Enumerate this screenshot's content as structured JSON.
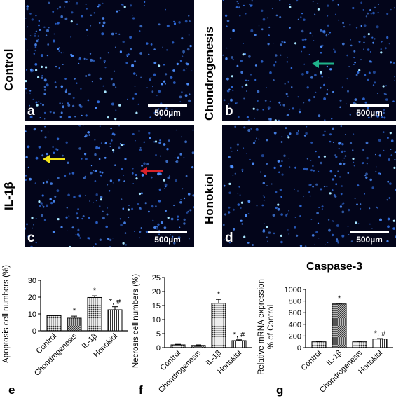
{
  "panels": [
    {
      "letter": "a",
      "label": "Control",
      "scale": "500µm"
    },
    {
      "letter": "b",
      "label": "Chondrogenesis",
      "scale": "500µm"
    },
    {
      "letter": "c",
      "label": "IL-1β",
      "scale": "500µm"
    },
    {
      "letter": "d",
      "label": "Honokiol",
      "scale": "500µm"
    }
  ],
  "arrow_colors": {
    "green": "#1fb38a",
    "yellow": "#f2e418",
    "red": "#d8222a"
  },
  "chart_data": [
    {
      "type": "bar",
      "panel": "e",
      "title": "",
      "ylabel": "Apoptosis cell numbers (%)",
      "categories": [
        "Control",
        "Chondrogenesis",
        "IL-1β",
        "Honokiol"
      ],
      "values": [
        9,
        7.5,
        19.8,
        12.5
      ],
      "errors": [
        0.3,
        1.2,
        1.0,
        1.8
      ],
      "annotations": [
        "",
        "*",
        "*",
        "*, #"
      ],
      "patterns": [
        "dots",
        "grid",
        "dots",
        "vlines"
      ],
      "ylim": [
        0,
        30
      ],
      "yticks": [
        0,
        10,
        20,
        30
      ]
    },
    {
      "type": "bar",
      "panel": "f",
      "title": "",
      "ylabel": "Necrosis cell numbers (%)",
      "categories": [
        "Control",
        "Chondrogenesis",
        "IL-1β",
        "Honokiol"
      ],
      "values": [
        1.0,
        0.8,
        15.8,
        2.5
      ],
      "errors": [
        0.2,
        0.2,
        1.4,
        0.3
      ],
      "annotations": [
        "",
        "",
        "*",
        "*, #"
      ],
      "patterns": [
        "dots",
        "grid",
        "dots",
        "vlines"
      ],
      "ylim": [
        0,
        25
      ],
      "yticks": [
        0,
        5,
        10,
        15,
        20,
        25
      ]
    },
    {
      "type": "bar",
      "panel": "g",
      "title": "Caspase-3",
      "ylabel": "Relative mRNA expression\n% of Control",
      "categories": [
        "Control",
        "IL-1β",
        "Chondrogenesis",
        "Honokiol"
      ],
      "values": [
        100,
        750,
        100,
        148
      ],
      "errors": [
        4,
        12,
        10,
        8
      ],
      "annotations": [
        "",
        "*",
        "",
        "*, #"
      ],
      "patterns": [
        "dots",
        "grid",
        "dots",
        "vlines"
      ],
      "ylim": [
        0,
        1000
      ],
      "yticks": [
        0,
        200,
        400,
        600,
        800,
        1000
      ]
    }
  ]
}
